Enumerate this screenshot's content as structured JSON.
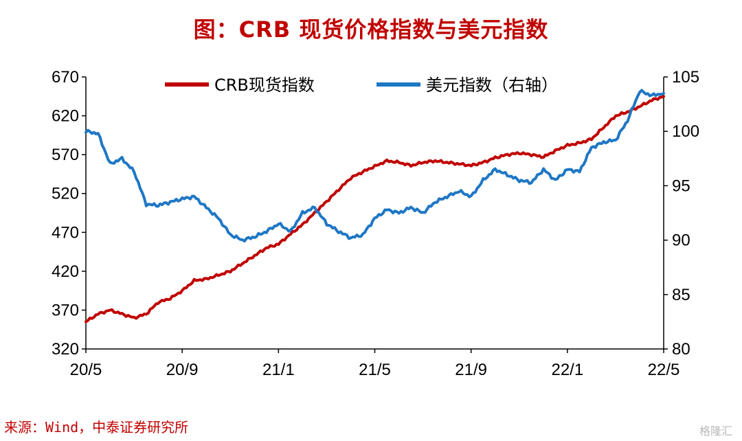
{
  "title": "图：CRB 现货价格指数与美元指数",
  "source": "来源：Wind，中泰证券研究所",
  "watermark": "格隆汇",
  "chart_data": {
    "type": "line",
    "x_ticks": [
      "20/5",
      "20/9",
      "21/1",
      "21/5",
      "21/9",
      "22/1",
      "22/5"
    ],
    "y_left": {
      "ticks": [
        320,
        370,
        420,
        470,
        520,
        570,
        620,
        670
      ],
      "ylim": [
        320,
        670
      ]
    },
    "y_right": {
      "ticks": [
        80,
        85,
        90,
        95,
        100,
        105
      ],
      "ylim": [
        80,
        105
      ]
    },
    "legend_position": "top",
    "series": [
      {
        "name": "CRB现货指数",
        "axis": "left",
        "color": "#c00000",
        "x": [
          2020.333,
          2020.375,
          2020.417,
          2020.458,
          2020.5,
          2020.542,
          2020.583,
          2020.625,
          2020.667,
          2020.708,
          2020.75,
          2020.792,
          2020.833,
          2020.875,
          2020.917,
          2020.958,
          2021.0,
          2021.042,
          2021.083,
          2021.125,
          2021.167,
          2021.208,
          2021.25,
          2021.292,
          2021.333,
          2021.375,
          2021.417,
          2021.458,
          2021.5,
          2021.542,
          2021.583,
          2021.625,
          2021.667,
          2021.708,
          2021.75,
          2021.792,
          2021.833,
          2021.875,
          2021.917,
          2021.958,
          2022.0,
          2022.042,
          2022.083,
          2022.125,
          2022.167,
          2022.208,
          2022.25,
          2022.292,
          2022.333
        ],
        "values": [
          355,
          365,
          370,
          365,
          360,
          365,
          380,
          385,
          395,
          408,
          410,
          415,
          420,
          430,
          440,
          450,
          455,
          468,
          480,
          495,
          510,
          525,
          540,
          548,
          555,
          562,
          560,
          556,
          560,
          562,
          560,
          558,
          556,
          560,
          566,
          570,
          572,
          570,
          567,
          575,
          582,
          585,
          590,
          605,
          620,
          625,
          632,
          640,
          645
        ]
      },
      {
        "name": "美元指数（右轴）",
        "axis": "right",
        "color": "#1f77c4",
        "x": [
          2020.333,
          2020.375,
          2020.417,
          2020.458,
          2020.5,
          2020.542,
          2020.583,
          2020.625,
          2020.667,
          2020.708,
          2020.75,
          2020.792,
          2020.833,
          2020.875,
          2020.917,
          2020.958,
          2021.0,
          2021.042,
          2021.083,
          2021.125,
          2021.167,
          2021.208,
          2021.25,
          2021.292,
          2021.333,
          2021.375,
          2021.417,
          2021.458,
          2021.5,
          2021.542,
          2021.583,
          2021.625,
          2021.667,
          2021.708,
          2021.75,
          2021.792,
          2021.833,
          2021.875,
          2021.917,
          2021.958,
          2022.0,
          2022.042,
          2022.083,
          2022.125,
          2022.167,
          2022.208,
          2022.25,
          2022.292,
          2022.333
        ],
        "values": [
          100,
          99.8,
          97,
          97.5,
          96.3,
          93.3,
          93.2,
          93.5,
          93.8,
          94,
          93,
          92,
          90.5,
          90,
          90.3,
          90.8,
          91.5,
          90.8,
          92.5,
          93,
          91.5,
          90.8,
          90.2,
          90.5,
          92,
          92.8,
          92.5,
          93,
          92.5,
          93.5,
          94,
          94.5,
          94,
          95.5,
          96.5,
          96,
          95.5,
          95.3,
          96.5,
          95.5,
          96.5,
          96.3,
          98.5,
          99,
          99.2,
          101,
          103.7,
          103.3,
          103.5
        ]
      }
    ]
  }
}
